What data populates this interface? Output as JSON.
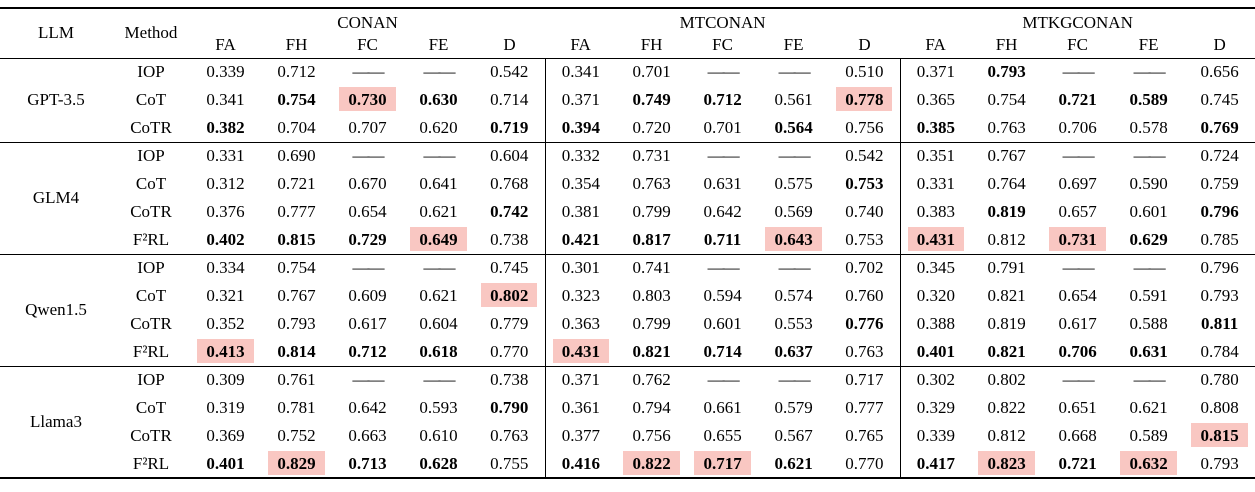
{
  "table": {
    "col_llm": "LLM",
    "col_method": "Method",
    "dash": "——",
    "highlight_color": "#f9c7c2",
    "groups": [
      {
        "name": "CONAN",
        "metrics": [
          "FA",
          "FH",
          "FC",
          "FE",
          "D"
        ]
      },
      {
        "name": "MTCONAN",
        "metrics": [
          "FA",
          "FH",
          "FC",
          "FE",
          "D"
        ]
      },
      {
        "name": "MTKGCONAN",
        "metrics": [
          "FA",
          "FH",
          "FC",
          "FE",
          "D"
        ]
      }
    ],
    "blocks": [
      {
        "llm": "GPT-3.5",
        "rows": [
          {
            "method": "IOP",
            "cells": [
              {
                "v": "0.339"
              },
              {
                "v": "0.712"
              },
              {
                "v": "——"
              },
              {
                "v": "——"
              },
              {
                "v": "0.542"
              },
              {
                "v": "0.341"
              },
              {
                "v": "0.701"
              },
              {
                "v": "——"
              },
              {
                "v": "——"
              },
              {
                "v": "0.510"
              },
              {
                "v": "0.371"
              },
              {
                "v": "0.793",
                "b": true
              },
              {
                "v": "——"
              },
              {
                "v": "——"
              },
              {
                "v": "0.656"
              }
            ]
          },
          {
            "method": "CoT",
            "cells": [
              {
                "v": "0.341"
              },
              {
                "v": "0.754",
                "b": true
              },
              {
                "v": "0.730",
                "b": true,
                "h": true
              },
              {
                "v": "0.630",
                "b": true
              },
              {
                "v": "0.714"
              },
              {
                "v": "0.371"
              },
              {
                "v": "0.749",
                "b": true
              },
              {
                "v": "0.712",
                "b": true
              },
              {
                "v": "0.561"
              },
              {
                "v": "0.778",
                "b": true,
                "h": true
              },
              {
                "v": "0.365"
              },
              {
                "v": "0.754"
              },
              {
                "v": "0.721",
                "b": true
              },
              {
                "v": "0.589",
                "b": true
              },
              {
                "v": "0.745"
              }
            ]
          },
          {
            "method": "CoTR",
            "cells": [
              {
                "v": "0.382",
                "b": true
              },
              {
                "v": "0.704"
              },
              {
                "v": "0.707"
              },
              {
                "v": "0.620"
              },
              {
                "v": "0.719",
                "b": true
              },
              {
                "v": "0.394",
                "b": true
              },
              {
                "v": "0.720"
              },
              {
                "v": "0.701"
              },
              {
                "v": "0.564",
                "b": true
              },
              {
                "v": "0.756"
              },
              {
                "v": "0.385",
                "b": true
              },
              {
                "v": "0.763"
              },
              {
                "v": "0.706"
              },
              {
                "v": "0.578"
              },
              {
                "v": "0.769",
                "b": true
              }
            ]
          }
        ]
      },
      {
        "llm": "GLM4",
        "rows": [
          {
            "method": "IOP",
            "cells": [
              {
                "v": "0.331"
              },
              {
                "v": "0.690"
              },
              {
                "v": "——"
              },
              {
                "v": "——"
              },
              {
                "v": "0.604"
              },
              {
                "v": "0.332"
              },
              {
                "v": "0.731"
              },
              {
                "v": "——"
              },
              {
                "v": "——"
              },
              {
                "v": "0.542"
              },
              {
                "v": "0.351"
              },
              {
                "v": "0.767"
              },
              {
                "v": "——"
              },
              {
                "v": "——"
              },
              {
                "v": "0.724"
              }
            ]
          },
          {
            "method": "CoT",
            "cells": [
              {
                "v": "0.312"
              },
              {
                "v": "0.721"
              },
              {
                "v": "0.670"
              },
              {
                "v": "0.641"
              },
              {
                "v": "0.768"
              },
              {
                "v": "0.354"
              },
              {
                "v": "0.763"
              },
              {
                "v": "0.631"
              },
              {
                "v": "0.575"
              },
              {
                "v": "0.753",
                "b": true
              },
              {
                "v": "0.331"
              },
              {
                "v": "0.764"
              },
              {
                "v": "0.697"
              },
              {
                "v": "0.590"
              },
              {
                "v": "0.759"
              }
            ]
          },
          {
            "method": "CoTR",
            "cells": [
              {
                "v": "0.376"
              },
              {
                "v": "0.777"
              },
              {
                "v": "0.654"
              },
              {
                "v": "0.621"
              },
              {
                "v": "0.742",
                "b": true
              },
              {
                "v": "0.381"
              },
              {
                "v": "0.799"
              },
              {
                "v": "0.642"
              },
              {
                "v": "0.569"
              },
              {
                "v": "0.740"
              },
              {
                "v": "0.383"
              },
              {
                "v": "0.819",
                "b": true
              },
              {
                "v": "0.657"
              },
              {
                "v": "0.601"
              },
              {
                "v": "0.796",
                "b": true
              }
            ]
          },
          {
            "method": "F²RL",
            "cells": [
              {
                "v": "0.402",
                "b": true
              },
              {
                "v": "0.815",
                "b": true
              },
              {
                "v": "0.729",
                "b": true
              },
              {
                "v": "0.649",
                "b": true,
                "h": true
              },
              {
                "v": "0.738"
              },
              {
                "v": "0.421",
                "b": true
              },
              {
                "v": "0.817",
                "b": true
              },
              {
                "v": "0.711",
                "b": true
              },
              {
                "v": "0.643",
                "b": true,
                "h": true
              },
              {
                "v": "0.753"
              },
              {
                "v": "0.431",
                "b": true,
                "h": true
              },
              {
                "v": "0.812"
              },
              {
                "v": "0.731",
                "b": true,
                "h": true
              },
              {
                "v": "0.629",
                "b": true
              },
              {
                "v": "0.785"
              }
            ]
          }
        ]
      },
      {
        "llm": "Qwen1.5",
        "rows": [
          {
            "method": "IOP",
            "cells": [
              {
                "v": "0.334"
              },
              {
                "v": "0.754"
              },
              {
                "v": "——"
              },
              {
                "v": "——"
              },
              {
                "v": "0.745"
              },
              {
                "v": "0.301"
              },
              {
                "v": "0.741"
              },
              {
                "v": "——"
              },
              {
                "v": "——"
              },
              {
                "v": "0.702"
              },
              {
                "v": "0.345"
              },
              {
                "v": "0.791"
              },
              {
                "v": "——"
              },
              {
                "v": "——"
              },
              {
                "v": "0.796"
              }
            ]
          },
          {
            "method": "CoT",
            "cells": [
              {
                "v": "0.321"
              },
              {
                "v": "0.767"
              },
              {
                "v": "0.609"
              },
              {
                "v": "0.621"
              },
              {
                "v": "0.802",
                "b": true,
                "h": true
              },
              {
                "v": "0.323"
              },
              {
                "v": "0.803"
              },
              {
                "v": "0.594"
              },
              {
                "v": "0.574"
              },
              {
                "v": "0.760"
              },
              {
                "v": "0.320"
              },
              {
                "v": "0.821"
              },
              {
                "v": "0.654"
              },
              {
                "v": "0.591"
              },
              {
                "v": "0.793"
              }
            ]
          },
          {
            "method": "CoTR",
            "cells": [
              {
                "v": "0.352"
              },
              {
                "v": "0.793"
              },
              {
                "v": "0.617"
              },
              {
                "v": "0.604"
              },
              {
                "v": "0.779"
              },
              {
                "v": "0.363"
              },
              {
                "v": "0.799"
              },
              {
                "v": "0.601"
              },
              {
                "v": "0.553"
              },
              {
                "v": "0.776",
                "b": true
              },
              {
                "v": "0.388"
              },
              {
                "v": "0.819"
              },
              {
                "v": "0.617"
              },
              {
                "v": "0.588"
              },
              {
                "v": "0.811",
                "b": true
              }
            ]
          },
          {
            "method": "F²RL",
            "cells": [
              {
                "v": "0.413",
                "b": true,
                "h": true
              },
              {
                "v": "0.814",
                "b": true
              },
              {
                "v": "0.712",
                "b": true
              },
              {
                "v": "0.618",
                "b": true
              },
              {
                "v": "0.770"
              },
              {
                "v": "0.431",
                "b": true,
                "h": true
              },
              {
                "v": "0.821",
                "b": true
              },
              {
                "v": "0.714",
                "b": true
              },
              {
                "v": "0.637",
                "b": true
              },
              {
                "v": "0.763"
              },
              {
                "v": "0.401",
                "b": true
              },
              {
                "v": "0.821",
                "b": true
              },
              {
                "v": "0.706",
                "b": true
              },
              {
                "v": "0.631",
                "b": true
              },
              {
                "v": "0.784"
              }
            ]
          }
        ]
      },
      {
        "llm": "Llama3",
        "rows": [
          {
            "method": "IOP",
            "cells": [
              {
                "v": "0.309"
              },
              {
                "v": "0.761"
              },
              {
                "v": "——"
              },
              {
                "v": "——"
              },
              {
                "v": "0.738"
              },
              {
                "v": "0.371"
              },
              {
                "v": "0.762"
              },
              {
                "v": "——"
              },
              {
                "v": "——"
              },
              {
                "v": "0.717"
              },
              {
                "v": "0.302"
              },
              {
                "v": "0.802"
              },
              {
                "v": "——"
              },
              {
                "v": "——"
              },
              {
                "v": "0.780"
              }
            ]
          },
          {
            "method": "CoT",
            "cells": [
              {
                "v": "0.319"
              },
              {
                "v": "0.781"
              },
              {
                "v": "0.642"
              },
              {
                "v": "0.593"
              },
              {
                "v": "0.790",
                "b": true
              },
              {
                "v": "0.361"
              },
              {
                "v": "0.794"
              },
              {
                "v": "0.661"
              },
              {
                "v": "0.579"
              },
              {
                "v": "0.777"
              },
              {
                "v": "0.329"
              },
              {
                "v": "0.822"
              },
              {
                "v": "0.651"
              },
              {
                "v": "0.621"
              },
              {
                "v": "0.808"
              }
            ]
          },
          {
            "method": "CoTR",
            "cells": [
              {
                "v": "0.369"
              },
              {
                "v": "0.752"
              },
              {
                "v": "0.663"
              },
              {
                "v": "0.610"
              },
              {
                "v": "0.763"
              },
              {
                "v": "0.377"
              },
              {
                "v": "0.756"
              },
              {
                "v": "0.655"
              },
              {
                "v": "0.567"
              },
              {
                "v": "0.765"
              },
              {
                "v": "0.339"
              },
              {
                "v": "0.812"
              },
              {
                "v": "0.668"
              },
              {
                "v": "0.589"
              },
              {
                "v": "0.815",
                "b": true,
                "h": true
              }
            ]
          },
          {
            "method": "F²RL",
            "cells": [
              {
                "v": "0.401",
                "b": true
              },
              {
                "v": "0.829",
                "b": true,
                "h": true
              },
              {
                "v": "0.713",
                "b": true
              },
              {
                "v": "0.628",
                "b": true
              },
              {
                "v": "0.755"
              },
              {
                "v": "0.416",
                "b": true
              },
              {
                "v": "0.822",
                "b": true,
                "h": true
              },
              {
                "v": "0.717",
                "b": true,
                "h": true
              },
              {
                "v": "0.621",
                "b": true
              },
              {
                "v": "0.770"
              },
              {
                "v": "0.417",
                "b": true
              },
              {
                "v": "0.823",
                "b": true,
                "h": true
              },
              {
                "v": "0.721",
                "b": true
              },
              {
                "v": "0.632",
                "b": true,
                "h": true
              },
              {
                "v": "0.793"
              }
            ]
          }
        ]
      }
    ]
  }
}
